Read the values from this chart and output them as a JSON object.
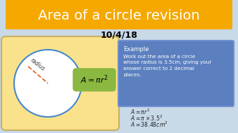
{
  "title": "Area of a circle revision",
  "date": "10/4/18",
  "title_bg": "#F5A800",
  "title_color": "#FFFFFF",
  "bg_color": "#C8D9E8",
  "yellow_box_color": "#FAE28C",
  "yellow_box_edge": "#C8B060",
  "circle_fill": "#FFFFFF",
  "circle_edge": "#4488CC",
  "formula_bg": "#8AB840",
  "formula_text": "$A = \\pi r^2$",
  "blue_box_color": "#5B7FBF",
  "blue_box_edge": "#7090D0",
  "example_title": "Example",
  "example_body": "Work out the area of a circle\nwhose radius is 3.5cm, giving your\nanswer correct to 2 decimal\nplaces.",
  "solution_line1": "$A = \\pi r^2$",
  "solution_line2": "$A = \\pi \\times 3.5^2$",
  "solution_line3": "$A = 38.48cm^2$",
  "radius_label": "radius"
}
